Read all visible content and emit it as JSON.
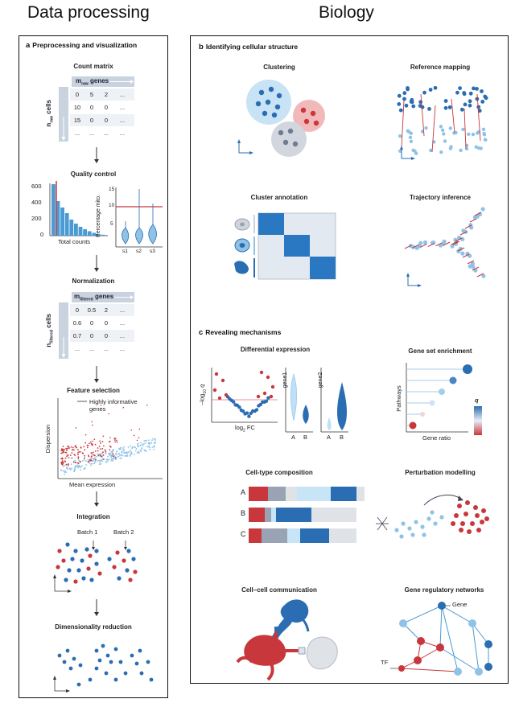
{
  "headings": {
    "left": "Data processing",
    "right": "Biology"
  },
  "panel_a": {
    "letter": "a",
    "title": "Preprocessing and visualization",
    "count_matrix": {
      "title": "Count matrix",
      "col_label_m": "m",
      "col_label_sub": "raw",
      "col_label_rest": "genes",
      "row_label_n": "n",
      "row_label_sub": "raw",
      "row_label_rest": "cells",
      "rows": [
        [
          "0",
          "5",
          "2",
          "..."
        ],
        [
          "10",
          "0",
          "0",
          "..."
        ],
        [
          "15",
          "0",
          "0",
          "..."
        ],
        [
          "...",
          "...",
          "...",
          "..."
        ]
      ]
    },
    "quality_control": {
      "title": "Quality control",
      "hist_yticks": [
        "600",
        "400",
        "200",
        "0"
      ],
      "hist_xlabel": "Total counts",
      "hist_values": [
        640,
        430,
        350,
        280,
        200,
        150,
        110,
        80,
        55,
        35,
        20,
        12
      ],
      "violin_yticks": [
        "15",
        "10",
        "5"
      ],
      "violin_ylabel": "Percentage mito.",
      "violin_xticks": [
        "s1",
        "s2",
        "s3"
      ]
    },
    "normalization": {
      "title": "Normalization",
      "col_label_m": "m",
      "col_label_sub": "filtered",
      "col_label_rest": "genes",
      "row_label_n": "n",
      "row_label_sub": "filtered",
      "row_label_rest": "cells",
      "rows": [
        [
          "0",
          "0.5",
          "2",
          "..."
        ],
        [
          "0.6",
          "0",
          "0",
          "..."
        ],
        [
          "0.7",
          "0",
          "0",
          "..."
        ],
        [
          "...",
          "...",
          "...",
          "..."
        ]
      ]
    },
    "feature_selection": {
      "title": "Feature selection",
      "legend": "Highly informative genes",
      "ylabel": "Dispersion",
      "xlabel": "Mean expression"
    },
    "integration": {
      "title": "Integration",
      "batch1": "Batch 1",
      "batch2": "Batch 2"
    },
    "dim_reduction": {
      "title": "Dimensionality reduction"
    }
  },
  "panel_b": {
    "letter": "b",
    "title": "Identifying cellular structure",
    "clustering": "Clustering",
    "reference_mapping": "Reference mapping",
    "cluster_annotation": "Cluster annotation",
    "trajectory_inference": "Trajectory inference"
  },
  "panel_c": {
    "letter": "c",
    "title": "Revealing mechanisms",
    "differential_expression": {
      "title": "Differential expression",
      "ylabel_pre": "–log",
      "ylabel_sub": "10",
      "ylabel_post": "q",
      "xlabel_pre": "log",
      "xlabel_sub": "2",
      "xlabel_post": "FC",
      "gene1": "gene1",
      "gene2": "gene2",
      "groups": [
        "A",
        "B",
        "A",
        "B"
      ]
    },
    "gene_set_enrichment": {
      "title": "Gene set enrichment",
      "ylabel": "Pathways",
      "xlabel": "Gene ratio",
      "legend": "q"
    },
    "cell_type_composition": {
      "title": "Cell-type composition",
      "rows": [
        "A",
        "B",
        "C"
      ]
    },
    "perturbation_modelling": {
      "title": "Perturbation modelling"
    },
    "cell_cell_communication": {
      "title": "Cell–cell communication"
    },
    "gene_regulatory_networks": {
      "title": "Gene regulatory networks",
      "gene_label": "Gene",
      "tf_label": "TF"
    }
  },
  "colors": {
    "blue": "#2a6db2",
    "light_blue": "#8fc3e6",
    "red": "#c8373b",
    "grey": "#9aa3b3"
  }
}
